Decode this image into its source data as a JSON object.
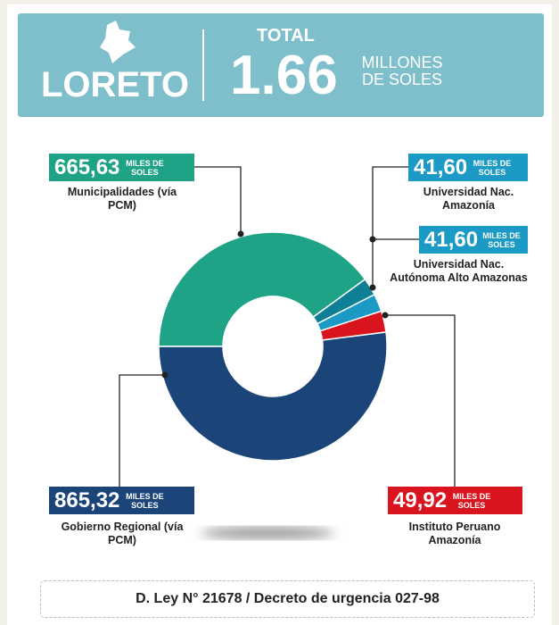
{
  "header": {
    "region": "LORETO",
    "total_label": "TOTAL",
    "total_value": "1.66",
    "total_unit": "MILLONES DE SOLES"
  },
  "chart_data": {
    "type": "pie",
    "donut": true,
    "unit": "MILES DE SOLES",
    "categories": [
      "Municipalidades (vía PCM)",
      "Universidad Nac. Amazonía",
      "Universidad Nac. Autónoma Alto Amazonas",
      "Instituto Peruano Amazonía",
      "Gobierno Regional (vía PCM)"
    ],
    "values": [
      665.63,
      41.6,
      41.6,
      49.92,
      865.32
    ],
    "value_labels": [
      "665,63",
      "41,60",
      "41,60",
      "49,92",
      "865,32"
    ],
    "colors": [
      "#1fa387",
      "#0f7f95",
      "#1a9ac4",
      "#d9141e",
      "#1b4479"
    ]
  },
  "footer": "D. Ley N° 21678 / Decreto de urgencia 027-98"
}
